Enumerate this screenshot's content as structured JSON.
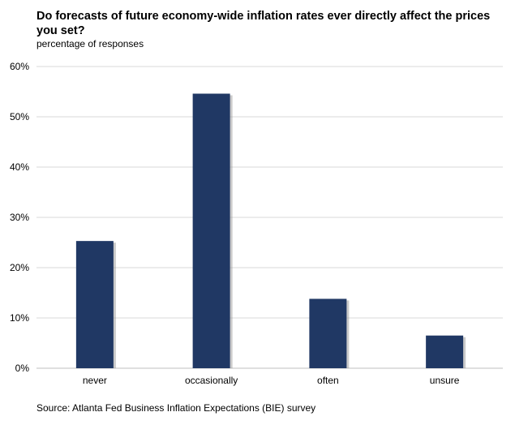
{
  "chart_data": {
    "type": "bar",
    "title": "Do forecasts of future economy-wide inflation rates ever directly affect the prices you set?",
    "subtitle": "percentage of responses",
    "categories": [
      "never",
      "occasionally",
      "often",
      "unsure"
    ],
    "values": [
      25.3,
      54.6,
      13.8,
      6.5
    ],
    "y_ticks": [
      "0%",
      "10%",
      "20%",
      "30%",
      "40%",
      "50%",
      "60%"
    ],
    "ylim": [
      0,
      60
    ],
    "grid": true,
    "bar_color": "#203864",
    "source": "Source: Atlanta Fed Business Inflation Expectations (BIE) survey"
  }
}
